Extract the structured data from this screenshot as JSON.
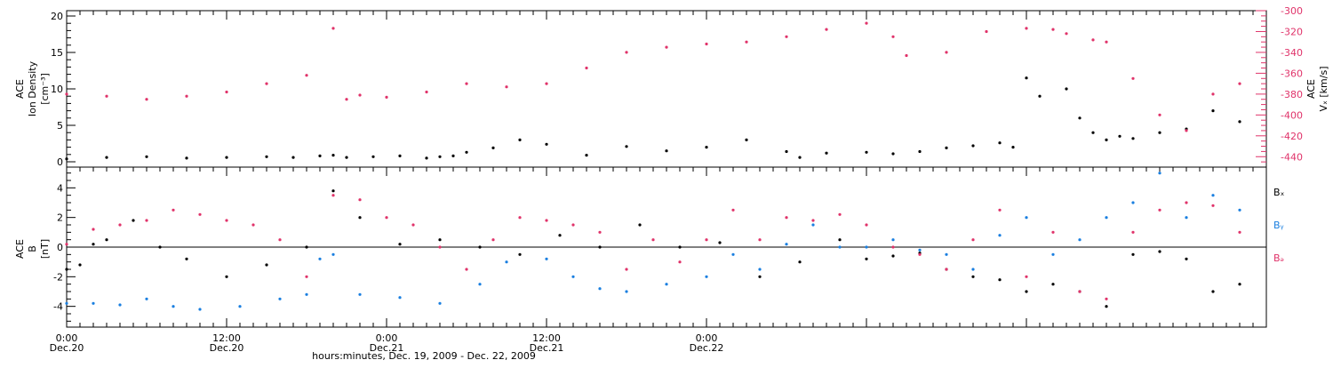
{
  "colors": {
    "black": "#000000",
    "blue": "#1a7fe0",
    "red": "#e0336a"
  },
  "chart_data": [
    {
      "type": "scatter",
      "panel": "top",
      "left_axis": {
        "label_lines": [
          "ACE",
          "Ion Density",
          "[cm⁻³]"
        ],
        "ylim": [
          0,
          20
        ],
        "ticks": [
          0,
          5,
          10,
          15,
          20
        ],
        "tick_labels": [
          "0",
          "5",
          "10",
          "15",
          "20"
        ]
      },
      "right_axis": {
        "label_lines": [
          "ACE",
          "Vₓ [km/s]"
        ],
        "ylim": [
          -450,
          -300
        ],
        "ticks": [
          -300,
          -320,
          -340,
          -360,
          -380,
          -400,
          -420,
          -440
        ],
        "tick_labels": [
          "-300",
          "-320",
          "-340",
          "-360",
          "-380",
          "-400",
          "-420",
          "-440"
        ],
        "color": "#e0336a"
      },
      "series": [
        {
          "axis": "left",
          "color": "#000000",
          "x": [
            0,
            3,
            6,
            9,
            12,
            15,
            17,
            19,
            20,
            21,
            23,
            25,
            27,
            28,
            29,
            30,
            32,
            34,
            36,
            39,
            42,
            45,
            48,
            51,
            54,
            55,
            57,
            60,
            62,
            64,
            66,
            68,
            70,
            71,
            72,
            73,
            75,
            76,
            77,
            78,
            79,
            80,
            82,
            84,
            86,
            88
          ],
          "y": [
            0.4,
            0.6,
            0.7,
            0.5,
            0.6,
            0.7,
            0.6,
            0.8,
            0.9,
            0.6,
            0.7,
            0.8,
            0.5,
            0.7,
            0.8,
            1.3,
            1.9,
            3.0,
            2.4,
            0.9,
            2.1,
            1.5,
            2.0,
            3.0,
            1.4,
            0.6,
            1.2,
            1.3,
            1.1,
            1.4,
            1.9,
            2.2,
            2.6,
            2.0,
            11.5,
            9.0,
            10.0,
            6.0,
            4.0,
            3.0,
            3.5,
            3.2,
            4.0,
            4.5,
            7.0,
            5.5
          ]
        },
        {
          "axis": "right",
          "color": "#e0336a",
          "x": [
            0,
            3,
            6,
            9,
            12,
            15,
            18,
            20,
            21,
            22,
            24,
            27,
            30,
            33,
            36,
            39,
            42,
            45,
            48,
            51,
            54,
            57,
            60,
            62,
            63,
            66,
            69,
            72,
            74,
            75,
            77,
            78,
            80,
            82,
            84,
            86,
            88
          ],
          "y": [
            -380,
            -382,
            -385,
            -382,
            -378,
            -370,
            -362,
            -317,
            -385,
            -381,
            -383,
            -378,
            -370,
            -373,
            -370,
            -355,
            -340,
            -335,
            -332,
            -330,
            -325,
            -318,
            -312,
            -325,
            -343,
            -340,
            -320,
            -317,
            -318,
            -322,
            -328,
            -330,
            -365,
            -400,
            -415,
            -380,
            -370
          ]
        }
      ]
    },
    {
      "type": "scatter",
      "panel": "bottom",
      "left_axis": {
        "label_lines": [
          "ACE",
          "B",
          "[nT]"
        ],
        "ylim": [
          -5.4,
          5.4
        ],
        "ticks": [
          -4,
          -2,
          0,
          2,
          4
        ],
        "tick_labels": [
          "-4",
          "-2",
          "0",
          "2",
          "4"
        ]
      },
      "zero_line": true,
      "series": [
        {
          "name": "Bₓ",
          "color": "#000000",
          "x": [
            0,
            1,
            2,
            3,
            5,
            7,
            9,
            12,
            15,
            18,
            20,
            22,
            25,
            28,
            31,
            34,
            37,
            40,
            43,
            46,
            49,
            52,
            55,
            58,
            60,
            62,
            64,
            66,
            68,
            70,
            72,
            74,
            76,
            78,
            80,
            82,
            84,
            86,
            88
          ],
          "y": [
            -1.5,
            -1.2,
            0.2,
            0.5,
            1.8,
            0.0,
            -0.8,
            -2.0,
            -1.2,
            0.0,
            3.8,
            2.0,
            0.2,
            0.5,
            0.0,
            -0.5,
            0.8,
            0.0,
            1.5,
            0.0,
            0.3,
            -2.0,
            -1.0,
            0.5,
            -0.8,
            -0.6,
            -0.4,
            -1.5,
            -2.0,
            -2.2,
            -3.0,
            -2.5,
            -3.0,
            -4.0,
            -0.5,
            -0.3,
            -0.8,
            -3.0,
            -2.5
          ]
        },
        {
          "name": "Bᵧ",
          "color": "#1a7fe0",
          "x": [
            0,
            2,
            4,
            6,
            8,
            10,
            13,
            16,
            18,
            19,
            20,
            22,
            25,
            28,
            31,
            33,
            36,
            38,
            40,
            42,
            45,
            48,
            50,
            52,
            54,
            56,
            58,
            60,
            62,
            64,
            66,
            68,
            70,
            72,
            74,
            76,
            78,
            80,
            82,
            84,
            86,
            88
          ],
          "y": [
            -3.8,
            -3.8,
            -3.9,
            -3.5,
            -4.0,
            -4.2,
            -4.0,
            -3.5,
            -3.2,
            -0.8,
            -0.5,
            -3.2,
            -3.4,
            -3.8,
            -2.5,
            -1.0,
            -0.8,
            -2.0,
            -2.8,
            -3.0,
            -2.5,
            -2.0,
            -0.5,
            -1.5,
            0.2,
            1.5,
            0.0,
            0.0,
            0.5,
            -0.2,
            -0.5,
            -1.5,
            0.8,
            2.0,
            -0.5,
            0.5,
            2.0,
            3.0,
            5.0,
            2.0,
            3.5,
            2.5
          ]
        },
        {
          "name": "Bₔ",
          "color": "#e0336a",
          "x": [
            0,
            2,
            4,
            6,
            8,
            10,
            12,
            14,
            16,
            18,
            20,
            22,
            24,
            26,
            28,
            30,
            32,
            34,
            36,
            38,
            40,
            42,
            44,
            46,
            48,
            50,
            52,
            54,
            56,
            58,
            60,
            62,
            64,
            66,
            68,
            70,
            72,
            74,
            76,
            78,
            80,
            82,
            84,
            86,
            88
          ],
          "y": [
            0.2,
            1.2,
            1.5,
            1.8,
            2.5,
            2.2,
            1.8,
            1.5,
            0.5,
            -2.0,
            3.5,
            3.2,
            2.0,
            1.5,
            0.0,
            -1.5,
            0.5,
            2.0,
            1.8,
            1.5,
            1.0,
            -1.5,
            0.5,
            -1.0,
            0.5,
            2.5,
            0.5,
            2.0,
            1.8,
            2.2,
            1.5,
            0.0,
            -0.5,
            -1.5,
            0.5,
            2.5,
            -2.0,
            1.0,
            -3.0,
            -3.5,
            1.0,
            2.5,
            3.0,
            2.8,
            1.0
          ]
        }
      ]
    }
  ],
  "x_axis": {
    "xlim": [
      0,
      90
    ],
    "major_ticks": [
      0,
      12,
      24,
      36,
      48,
      60,
      72
    ],
    "tick_labels": [
      {
        "x": 0,
        "time": "0:00",
        "date": "Dec.20"
      },
      {
        "x": 12,
        "time": "12:00",
        "date": "Dec.20"
      },
      {
        "x": 24,
        "time": "0:00",
        "date": "Dec.21"
      },
      {
        "x": 36,
        "time": "12:00",
        "date": "Dec.21"
      },
      {
        "x": 48,
        "time": "0:00",
        "date": "Dec.22"
      }
    ],
    "title": "hours:minutes, Dec. 19, 2009 - Dec. 22, 2009"
  },
  "legend": {
    "placement": "right",
    "items": [
      {
        "label": "Bₓ",
        "color": "#000000"
      },
      {
        "label": "Bᵧ",
        "color": "#1a7fe0"
      },
      {
        "label": "Bₔ",
        "color": "#e0336a"
      }
    ]
  }
}
